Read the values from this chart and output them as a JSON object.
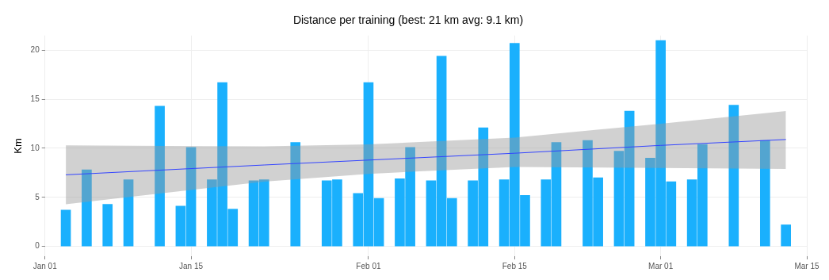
{
  "chart_data": {
    "type": "bar",
    "title": "Distance per training (best: 21 km avg: 9.1 km)",
    "ylabel": "Km",
    "x": [
      "--01-03",
      "--01-05",
      "--01-07",
      "--01-09",
      "--01-12",
      "--01-14",
      "--01-15",
      "--01-17",
      "--01-18",
      "--01-19",
      "--01-21",
      "--01-22",
      "--01-25",
      "--01-28",
      "--01-29",
      "--01-31",
      "--02-01",
      "--02-02",
      "--02-04",
      "--02-05",
      "--02-07",
      "--02-08",
      "--02-09",
      "--02-11",
      "--02-12",
      "--02-14",
      "--02-15",
      "--02-16",
      "--02-18",
      "--02-19",
      "--02-22",
      "--02-23",
      "--02-25",
      "--02-26",
      "--02-28",
      "--03-01",
      "--03-02",
      "--03-04",
      "--03-05",
      "--03-08",
      "--03-11",
      "--03-13"
    ],
    "series": [
      {
        "color": "#1ab0fd",
        "values": [
          3.7,
          7.8,
          4.3,
          6.8,
          14.3,
          4.1,
          10.1,
          6.8,
          16.7,
          3.8,
          6.7,
          6.8,
          10.6,
          6.7,
          6.8,
          5.4,
          16.7,
          4.9,
          6.9,
          10.1,
          6.7,
          19.4,
          4.9,
          6.7,
          12.1,
          6.8,
          20.7,
          5.2,
          6.8,
          10.6,
          10.8,
          7.0,
          9.7,
          13.8,
          9.0,
          21,
          6.6,
          6.8,
          10.4,
          14.4,
          10.8,
          2.2
        ]
      },
      {
        "type": "line",
        "color": "#3344ff",
        "x": [
          "--01-03",
          "--01-22",
          "--02-01",
          "--02-15",
          "--03-01",
          "--03-13"
        ],
        "values": [
          7.3,
          8.3,
          8.8,
          9.5,
          10.3,
          10.9
        ],
        "lower": [
          4.3,
          6.6,
          7.4,
          8.1,
          8.0,
          7.9
        ],
        "upper": [
          10.3,
          10.2,
          10.4,
          11.1,
          12.5,
          13.8
        ]
      }
    ],
    "xlim": [
      "--01-01",
      "--03-15"
    ],
    "xticks": [
      {
        "value": "--01-01",
        "label": "Jan 01"
      },
      {
        "value": "--01-15",
        "label": "Jan 15"
      },
      {
        "value": "--02-01",
        "label": "Feb 01"
      },
      {
        "value": "--02-15",
        "label": "Feb 15"
      },
      {
        "value": "--03-01",
        "label": "Mar 01"
      },
      {
        "value": "--03-15",
        "label": "Mar 15"
      }
    ],
    "ylim": [
      -1,
      21.5
    ],
    "yticks": [
      0,
      5,
      10,
      15,
      20
    ],
    "grid": true,
    "legend": false
  }
}
